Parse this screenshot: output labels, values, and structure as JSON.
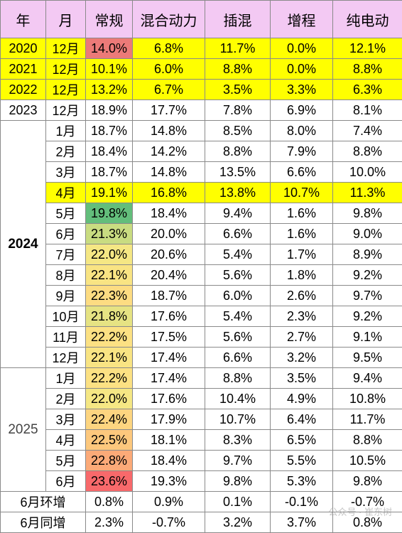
{
  "headers": [
    "年",
    "月",
    "常规",
    "混合动力",
    "插混",
    "增程",
    "纯电动"
  ],
  "single_rows": [
    {
      "year": "2020",
      "month": "12月",
      "vals": [
        "14.0%",
        "6.8%",
        "11.7%",
        "0.0%",
        "12.1%"
      ],
      "hl": true,
      "c": "#ec7a78"
    },
    {
      "year": "2021",
      "month": "12月",
      "vals": [
        "10.1%",
        "6.0%",
        "8.8%",
        "0.0%",
        "8.8%"
      ],
      "hl": true,
      "c": ""
    },
    {
      "year": "2022",
      "month": "12月",
      "vals": [
        "13.2%",
        "6.7%",
        "3.5%",
        "3.3%",
        "6.3%"
      ],
      "hl": true,
      "c": ""
    },
    {
      "year": "2023",
      "month": "12月",
      "vals": [
        "18.9%",
        "17.7%",
        "7.8%",
        "6.9%",
        "8.1%"
      ],
      "hl": false,
      "c": ""
    }
  ],
  "group_2024": {
    "year": "2024",
    "rows": [
      {
        "month": "1月",
        "vals": [
          "18.7%",
          "14.8%",
          "8.5%",
          "8.0%",
          "7.4%"
        ],
        "hl": false,
        "c": ""
      },
      {
        "month": "2月",
        "vals": [
          "18.4%",
          "14.2%",
          "8.8%",
          "7.9%",
          "8.8%"
        ],
        "hl": false,
        "c": ""
      },
      {
        "month": "3月",
        "vals": [
          "18.7%",
          "14.8%",
          "13.5%",
          "6.6%",
          "10.0%"
        ],
        "hl": false,
        "c": ""
      },
      {
        "month": "4月",
        "vals": [
          "19.1%",
          "16.8%",
          "13.8%",
          "10.7%",
          "11.3%"
        ],
        "hl": true,
        "c": ""
      },
      {
        "month": "5月",
        "vals": [
          "19.8%",
          "18.4%",
          "9.4%",
          "1.6%",
          "9.8%"
        ],
        "hl": false,
        "c": "#63be7b"
      },
      {
        "month": "6月",
        "vals": [
          "21.3%",
          "20.0%",
          "6.6%",
          "1.6%",
          "9.0%"
        ],
        "hl": false,
        "c": "#c9dc81"
      },
      {
        "month": "7月",
        "vals": [
          "22.0%",
          "20.6%",
          "5.4%",
          "1.7%",
          "8.9%"
        ],
        "hl": false,
        "c": "#f5e784"
      },
      {
        "month": "8月",
        "vals": [
          "22.1%",
          "20.4%",
          "5.6%",
          "1.8%",
          "9.2%"
        ],
        "hl": false,
        "c": "#f9e483"
      },
      {
        "month": "9月",
        "vals": [
          "22.3%",
          "18.7%",
          "6.0%",
          "2.6%",
          "9.7%"
        ],
        "hl": false,
        "c": "#fddc82"
      },
      {
        "month": "10月",
        "vals": [
          "21.8%",
          "17.6%",
          "5.4%",
          "2.3%",
          "9.2%"
        ],
        "hl": false,
        "c": "#e6e383"
      },
      {
        "month": "11月",
        "vals": [
          "22.2%",
          "17.5%",
          "5.6%",
          "2.7%",
          "9.1%"
        ],
        "hl": false,
        "c": "#fce183"
      },
      {
        "month": "12月",
        "vals": [
          "22.1%",
          "17.4%",
          "6.6%",
          "3.2%",
          "9.5%"
        ],
        "hl": false,
        "c": "#f9e483"
      }
    ]
  },
  "group_2025": {
    "year": "2025",
    "rows": [
      {
        "month": "1月",
        "vals": [
          "22.2%",
          "17.4%",
          "8.8%",
          "3.5%",
          "9.4%"
        ],
        "hl": false,
        "c": "#fce183"
      },
      {
        "month": "2月",
        "vals": [
          "22.0%",
          "17.6%",
          "10.4%",
          "4.9%",
          "10.8%"
        ],
        "hl": false,
        "c": "#f5e784"
      },
      {
        "month": "3月",
        "vals": [
          "22.4%",
          "17.9%",
          "10.7%",
          "6.4%",
          "11.7%"
        ],
        "hl": false,
        "c": "#fdd580"
      },
      {
        "month": "4月",
        "vals": [
          "22.5%",
          "18.1%",
          "8.3%",
          "6.5%",
          "8.8%"
        ],
        "hl": false,
        "c": "#fdc87d"
      },
      {
        "month": "5月",
        "vals": [
          "22.8%",
          "18.4%",
          "9.7%",
          "5.5%",
          "10.5%"
        ],
        "hl": false,
        "c": "#fcaa78"
      },
      {
        "month": "6月",
        "vals": [
          "23.6%",
          "19.3%",
          "9.8%",
          "5.3%",
          "9.8%"
        ],
        "hl": false,
        "c": "#f8696b"
      }
    ]
  },
  "summary_rows": [
    {
      "label": "6月环增",
      "vals": [
        "0.8%",
        "0.9%",
        "0.1%",
        "-0.1%",
        "-0.7%"
      ]
    },
    {
      "label": "6月同增",
      "vals": [
        "2.3%",
        "-0.7%",
        "3.2%",
        "3.7%",
        "0.8%"
      ]
    }
  ],
  "watermark": "公众号 · 崔东树"
}
